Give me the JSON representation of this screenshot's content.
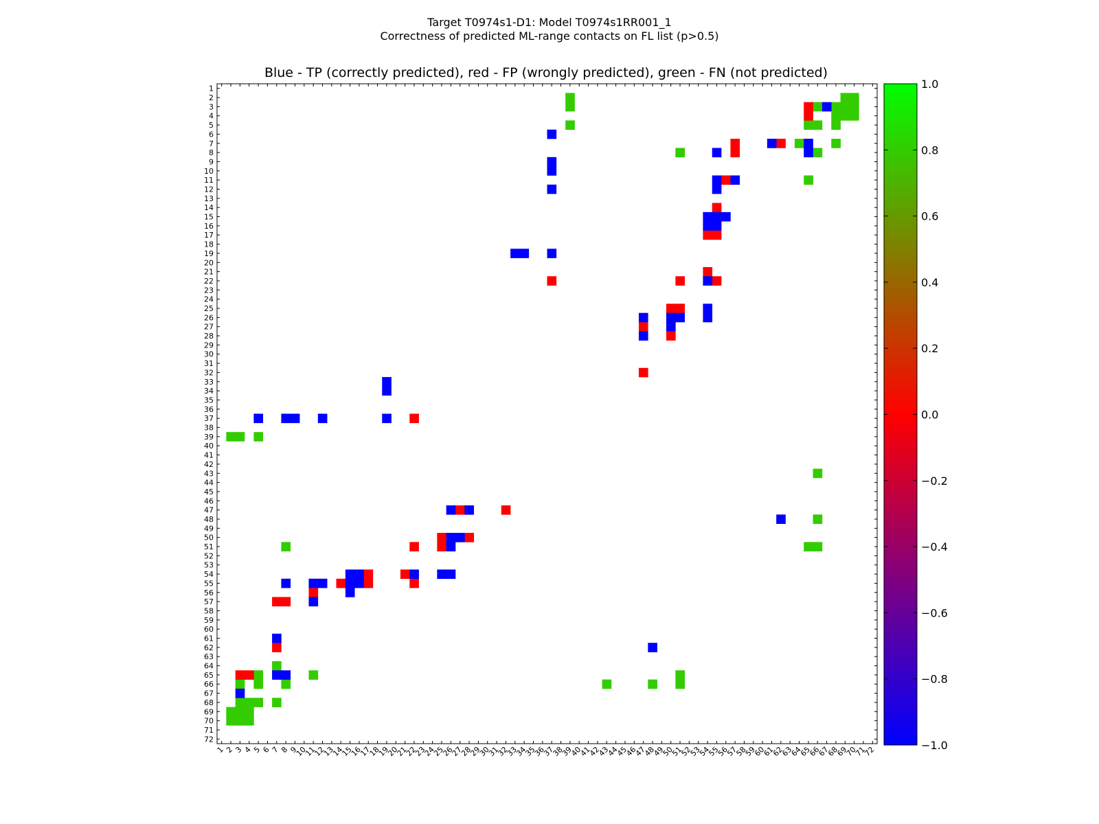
{
  "chart_data": {
    "type": "heatmap",
    "suptitle_line1": "Target T0974s1-D1: Model T0974s1RR001_1",
    "suptitle_line2": "Correctness of predicted ML-range contacts on FL list (p>0.5)",
    "title": "Blue - TP (correctly predicted), red - FP (wrongly predicted), green - FN (not predicted)",
    "n_residues": 72,
    "x_tick_labels": [
      "1",
      "2",
      "3",
      "4",
      "5",
      "6",
      "7",
      "8",
      "9",
      "10",
      "11",
      "12",
      "13",
      "14",
      "15",
      "16",
      "17",
      "18",
      "19",
      "20",
      "21",
      "22",
      "23",
      "24",
      "25",
      "26",
      "27",
      "28",
      "29",
      "30",
      "31",
      "32",
      "33",
      "34",
      "35",
      "36",
      "37",
      "38",
      "39",
      "40",
      "41",
      "42",
      "43",
      "44",
      "45",
      "46",
      "47",
      "48",
      "49",
      "50",
      "51",
      "52",
      "53",
      "54",
      "55",
      "56",
      "57",
      "58",
      "59",
      "60",
      "61",
      "62",
      "63",
      "64",
      "65",
      "66",
      "67",
      "68",
      "69",
      "70",
      "71",
      "72"
    ],
    "y_tick_labels": [
      "1",
      "2",
      "3",
      "4",
      "5",
      "6",
      "7",
      "8",
      "9",
      "10",
      "11",
      "12",
      "13",
      "14",
      "15",
      "16",
      "17",
      "18",
      "19",
      "20",
      "21",
      "22",
      "23",
      "24",
      "25",
      "26",
      "27",
      "28",
      "29",
      "30",
      "31",
      "32",
      "33",
      "34",
      "35",
      "36",
      "37",
      "38",
      "39",
      "40",
      "41",
      "42",
      "43",
      "44",
      "45",
      "46",
      "47",
      "48",
      "49",
      "50",
      "51",
      "52",
      "53",
      "54",
      "55",
      "56",
      "57",
      "58",
      "59",
      "60",
      "61",
      "62",
      "63",
      "64",
      "65",
      "66",
      "67",
      "68",
      "69",
      "70",
      "71",
      "72"
    ],
    "colorbar": {
      "min": -1.0,
      "max": 1.0,
      "tick_labels": [
        "1.0",
        "0.8",
        "0.6",
        "0.4",
        "0.2",
        "0.0",
        "−0.2",
        "−0.4",
        "−0.6",
        "−0.8",
        "−1.0"
      ],
      "tick_values": [
        1.0,
        0.8,
        0.6,
        0.4,
        0.2,
        0.0,
        -0.2,
        -0.4,
        -0.6,
        -0.8,
        -1.0
      ],
      "colors": {
        "minus_one": "#0000ff",
        "zero": "#ff0000",
        "plus_one": "#00ff00",
        "minus_half": "#800080",
        "plus_half": "#808000"
      }
    },
    "category_colors": {
      "TP": "#0000ff",
      "FP": "#ff0000",
      "FN": "#33cc00"
    },
    "cells": {
      "TP": [
        [
          37,
          6
        ],
        [
          37,
          9
        ],
        [
          37,
          10
        ],
        [
          37,
          12
        ],
        [
          37,
          19
        ],
        [
          33,
          19
        ],
        [
          34,
          19
        ],
        [
          67,
          3
        ],
        [
          65,
          7
        ],
        [
          65,
          8
        ],
        [
          61,
          7
        ],
        [
          55,
          8
        ],
        [
          55,
          11
        ],
        [
          55,
          12
        ],
        [
          57,
          11
        ],
        [
          54,
          15
        ],
        [
          54,
          16
        ],
        [
          55,
          15
        ],
        [
          55,
          16
        ],
        [
          56,
          15
        ],
        [
          54,
          22
        ],
        [
          54,
          25
        ],
        [
          54,
          26
        ],
        [
          47,
          26
        ],
        [
          47,
          28
        ],
        [
          50,
          26
        ],
        [
          50,
          27
        ],
        [
          51,
          26
        ],
        [
          5,
          37
        ],
        [
          8,
          37
        ],
        [
          9,
          37
        ],
        [
          12,
          37
        ],
        [
          19,
          37
        ],
        [
          19,
          33
        ],
        [
          19,
          34
        ],
        [
          26,
          47
        ],
        [
          28,
          47
        ],
        [
          26,
          50
        ],
        [
          27,
          50
        ],
        [
          26,
          51
        ],
        [
          22,
          54
        ],
        [
          25,
          54
        ],
        [
          26,
          54
        ],
        [
          15,
          54
        ],
        [
          16,
          54
        ],
        [
          15,
          55
        ],
        [
          16,
          55
        ],
        [
          15,
          56
        ],
        [
          8,
          55
        ],
        [
          11,
          55
        ],
        [
          12,
          55
        ],
        [
          11,
          57
        ],
        [
          7,
          61
        ],
        [
          48,
          62
        ],
        [
          62,
          48
        ],
        [
          7,
          65
        ],
        [
          8,
          65
        ],
        [
          3,
          67
        ]
      ],
      "FP": [
        [
          65,
          3
        ],
        [
          65,
          4
        ],
        [
          57,
          7
        ],
        [
          57,
          8
        ],
        [
          62,
          7
        ],
        [
          56,
          11
        ],
        [
          55,
          14
        ],
        [
          54,
          17
        ],
        [
          55,
          17
        ],
        [
          54,
          21
        ],
        [
          55,
          22
        ],
        [
          51,
          22
        ],
        [
          37,
          22
        ],
        [
          50,
          25
        ],
        [
          51,
          25
        ],
        [
          47,
          27
        ],
        [
          50,
          28
        ],
        [
          47,
          32
        ],
        [
          22,
          37
        ],
        [
          27,
          47
        ],
        [
          32,
          47
        ],
        [
          25,
          50
        ],
        [
          28,
          50
        ],
        [
          25,
          51
        ],
        [
          22,
          51
        ],
        [
          21,
          54
        ],
        [
          17,
          54
        ],
        [
          17,
          55
        ],
        [
          14,
          55
        ],
        [
          22,
          55
        ],
        [
          11,
          56
        ],
        [
          7,
          57
        ],
        [
          8,
          57
        ],
        [
          7,
          62
        ],
        [
          3,
          65
        ],
        [
          4,
          65
        ]
      ],
      "FN": [
        [
          39,
          2
        ],
        [
          39,
          3
        ],
        [
          39,
          5
        ],
        [
          66,
          3
        ],
        [
          69,
          2
        ],
        [
          70,
          2
        ],
        [
          69,
          3
        ],
        [
          70,
          3
        ],
        [
          68,
          3
        ],
        [
          68,
          4
        ],
        [
          69,
          4
        ],
        [
          70,
          4
        ],
        [
          65,
          5
        ],
        [
          66,
          5
        ],
        [
          68,
          5
        ],
        [
          64,
          7
        ],
        [
          68,
          7
        ],
        [
          51,
          8
        ],
        [
          66,
          8
        ],
        [
          65,
          11
        ],
        [
          2,
          39
        ],
        [
          3,
          39
        ],
        [
          5,
          39
        ],
        [
          66,
          43
        ],
        [
          66,
          48
        ],
        [
          65,
          51
        ],
        [
          66,
          51
        ],
        [
          8,
          51
        ],
        [
          7,
          64
        ],
        [
          5,
          65
        ],
        [
          11,
          65
        ],
        [
          3,
          66
        ],
        [
          5,
          66
        ],
        [
          8,
          66
        ],
        [
          43,
          66
        ],
        [
          48,
          66
        ],
        [
          51,
          65
        ],
        [
          51,
          66
        ],
        [
          4,
          68
        ],
        [
          5,
          68
        ],
        [
          7,
          68
        ],
        [
          3,
          68
        ],
        [
          2,
          69
        ],
        [
          3,
          69
        ],
        [
          4,
          69
        ],
        [
          2,
          70
        ],
        [
          3,
          70
        ],
        [
          4,
          70
        ]
      ]
    }
  }
}
